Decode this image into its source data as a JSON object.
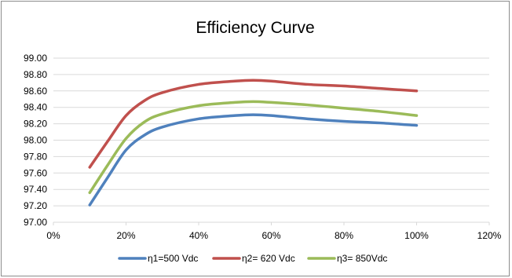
{
  "chart_data": {
    "type": "line",
    "title": "Efficiency Curve",
    "xlabel": "",
    "ylabel": "",
    "xlim": [
      0,
      120
    ],
    "ylim": [
      97.0,
      99.0
    ],
    "x_ticks": [
      0,
      20,
      40,
      60,
      80,
      100,
      120
    ],
    "x_tick_labels": [
      "0%",
      "20%",
      "40%",
      "60%",
      "80%",
      "100%",
      "120%"
    ],
    "y_ticks": [
      97.0,
      97.2,
      97.4,
      97.6,
      97.8,
      98.0,
      98.2,
      98.4,
      98.6,
      98.8,
      99.0
    ],
    "y_tick_labels": [
      "97.00",
      "97.20",
      "97.40",
      "97.60",
      "97.80",
      "98.00",
      "98.20",
      "98.40",
      "98.60",
      "98.80",
      "99.00"
    ],
    "grid": "horizontal",
    "legend_position": "bottom",
    "series": [
      {
        "name": "η1=500 Vdc",
        "color": "#4f81bd",
        "x": [
          10,
          15,
          20,
          25,
          30,
          40,
          50,
          55,
          60,
          70,
          80,
          90,
          100
        ],
        "y": [
          97.21,
          97.55,
          97.88,
          98.06,
          98.16,
          98.26,
          98.3,
          98.31,
          98.3,
          98.26,
          98.23,
          98.21,
          98.18
        ]
      },
      {
        "name": "η2= 620 Vdc",
        "color": "#c0504d",
        "x": [
          10,
          15,
          20,
          25,
          30,
          40,
          50,
          55,
          60,
          70,
          80,
          90,
          100
        ],
        "y": [
          97.67,
          97.99,
          98.3,
          98.48,
          98.58,
          98.68,
          98.72,
          98.73,
          98.72,
          98.68,
          98.66,
          98.63,
          98.6
        ]
      },
      {
        "name": "η3= 850Vdc",
        "color": "#9bbb59",
        "x": [
          10,
          15,
          20,
          25,
          30,
          40,
          50,
          55,
          60,
          70,
          80,
          90,
          100
        ],
        "y": [
          97.36,
          97.7,
          98.02,
          98.22,
          98.32,
          98.42,
          98.46,
          98.47,
          98.46,
          98.43,
          98.39,
          98.35,
          98.3
        ]
      }
    ]
  },
  "colors": {
    "grid": "#d9d9d9",
    "axis": "#d9d9d9",
    "frame": "#8c8c8c"
  }
}
